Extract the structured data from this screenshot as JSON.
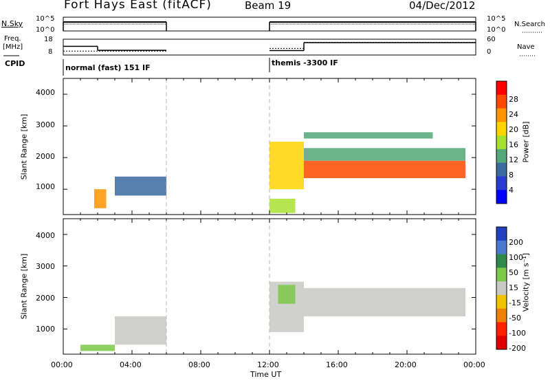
{
  "header": {
    "station": "Fort Hays East (fitACF)",
    "beam": "Beam 19",
    "date": "04/Dec/2012"
  },
  "left_labels": {
    "nsky": "N.Sky",
    "freq_line1": "Freq.",
    "freq_line2": "[MHz]",
    "cpid": "CPID",
    "nsky_ticks": [
      "10^5",
      "10^0"
    ],
    "freq_ticks": [
      "18",
      "8"
    ]
  },
  "right_labels": {
    "nsearch": "N.Search",
    "nave": "Nave",
    "nsearch_ticks": [
      "10^5",
      "10^0"
    ],
    "nave_ticks": [
      "60",
      "0"
    ]
  },
  "cpid_labels": [
    "normal (fast) 151 IF",
    "themis -3300 IF"
  ],
  "panels": {
    "power": {
      "ylabel": "Slant Range [km]",
      "yticks": [
        "4000",
        "3000",
        "2000",
        "1000"
      ],
      "cbar_label": "Power [dB]",
      "cbar_ticks": [
        "28",
        "24",
        "20",
        "16",
        "12",
        "8",
        "4"
      ],
      "cbar_colors": [
        "#ff0000",
        "#ff4a00",
        "#ff9400",
        "#ffd400",
        "#a8e030",
        "#52a878",
        "#3a6aa0",
        "#2a3cd0",
        "#0000ff"
      ]
    },
    "velocity": {
      "ylabel": "Slant Range [km]",
      "yticks": [
        "4000",
        "3000",
        "2000",
        "1000"
      ],
      "cbar_label": "Velocity [m s⁻¹]",
      "cbar_ticks": [
        "200",
        "100",
        "50",
        "15",
        "-15",
        "-50",
        "-100",
        "-200"
      ],
      "cbar_colors": [
        "#2040c0",
        "#4a7ad0",
        "#2e8a4a",
        "#7cc848",
        "#c8c8c4",
        "#f0c400",
        "#f08000",
        "#ff2000",
        "#e00000"
      ]
    }
  },
  "xaxis": {
    "ticks": [
      "00:00",
      "04:00",
      "08:00",
      "12:00",
      "16:00",
      "20:00",
      "00:00"
    ],
    "label": "Time UT"
  },
  "chart_data": {
    "type": "heatmap",
    "x_unit": "hours UT",
    "xlim": [
      0,
      24
    ],
    "ylim": [
      200,
      4500
    ],
    "data_gap": [
      6,
      12
    ],
    "freq_mhz_segments": [
      {
        "start": 0,
        "end": 2,
        "value": 13.5
      },
      {
        "start": 2,
        "end": 6,
        "value": 11.0
      },
      {
        "start": 12,
        "end": 14,
        "value": 10.8
      },
      {
        "start": 14,
        "end": 24,
        "value": 15.8
      }
    ],
    "nave_segments": [
      {
        "start": 0,
        "end": 6,
        "value": 15
      },
      {
        "start": 12,
        "end": 14,
        "value": 25
      },
      {
        "start": 14,
        "end": 24,
        "value": 48
      }
    ],
    "power_regions": [
      {
        "t0": 14.0,
        "t1": 23.4,
        "r0": 1350,
        "r1": 1900,
        "db": 26
      },
      {
        "t0": 14.0,
        "t1": 23.4,
        "r0": 1900,
        "r1": 2300,
        "db": 14
      },
      {
        "t0": 14.0,
        "t1": 21.5,
        "r0": 2600,
        "r1": 2800,
        "db": 12
      },
      {
        "t0": 12.0,
        "t1": 14.0,
        "r0": 1000,
        "r1": 2500,
        "db": 20
      },
      {
        "t0": 12.0,
        "t1": 13.5,
        "r0": 250,
        "r1": 700,
        "db": 16
      },
      {
        "t0": 3.0,
        "t1": 6.0,
        "r0": 800,
        "r1": 1400,
        "db": 8
      },
      {
        "t0": 1.8,
        "t1": 2.5,
        "r0": 400,
        "r1": 1000,
        "db": 24
      }
    ],
    "velocity_regions": [
      {
        "t0": 14.0,
        "t1": 23.4,
        "r0": 1400,
        "r1": 2300,
        "v": 0
      },
      {
        "t0": 12.0,
        "t1": 14.0,
        "r0": 900,
        "r1": 2500,
        "v": 0
      },
      {
        "t0": 12.5,
        "t1": 13.5,
        "r0": 1800,
        "r1": 2400,
        "v": 30
      },
      {
        "t0": 3.0,
        "t1": 6.0,
        "r0": 500,
        "r1": 1400,
        "v": 0
      },
      {
        "t0": 1.0,
        "t1": 3.0,
        "r0": 300,
        "r1": 500,
        "v": 30
      }
    ]
  }
}
